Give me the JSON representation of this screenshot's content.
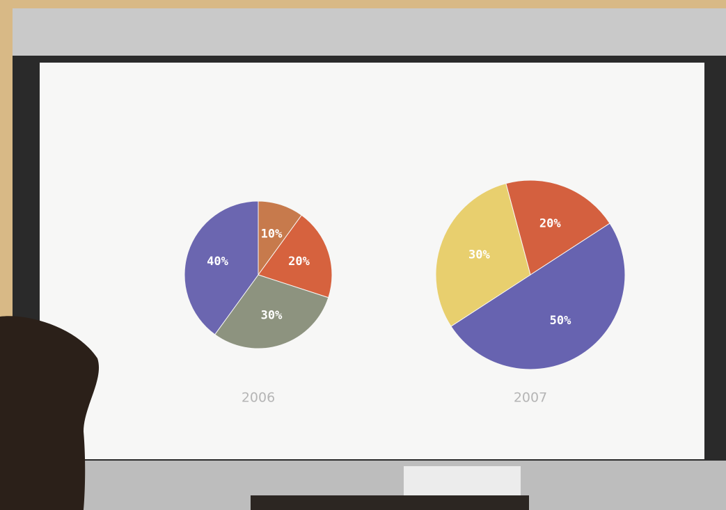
{
  "chart_data": [
    {
      "type": "pie",
      "title": "2006",
      "values": [
        10,
        20,
        30,
        40
      ],
      "value_labels": [
        "10%",
        "20%",
        "30%",
        "40%"
      ],
      "colors": [
        "#c77a4c",
        "#d6623e",
        "#8d937f",
        "#6b66b0"
      ]
    },
    {
      "type": "pie",
      "title": "2007",
      "values": [
        20,
        50,
        30
      ],
      "value_labels": [
        "20%",
        "50%",
        "30%"
      ],
      "colors": [
        "#d4603f",
        "#6763b0",
        "#e8cf6e"
      ]
    }
  ]
}
